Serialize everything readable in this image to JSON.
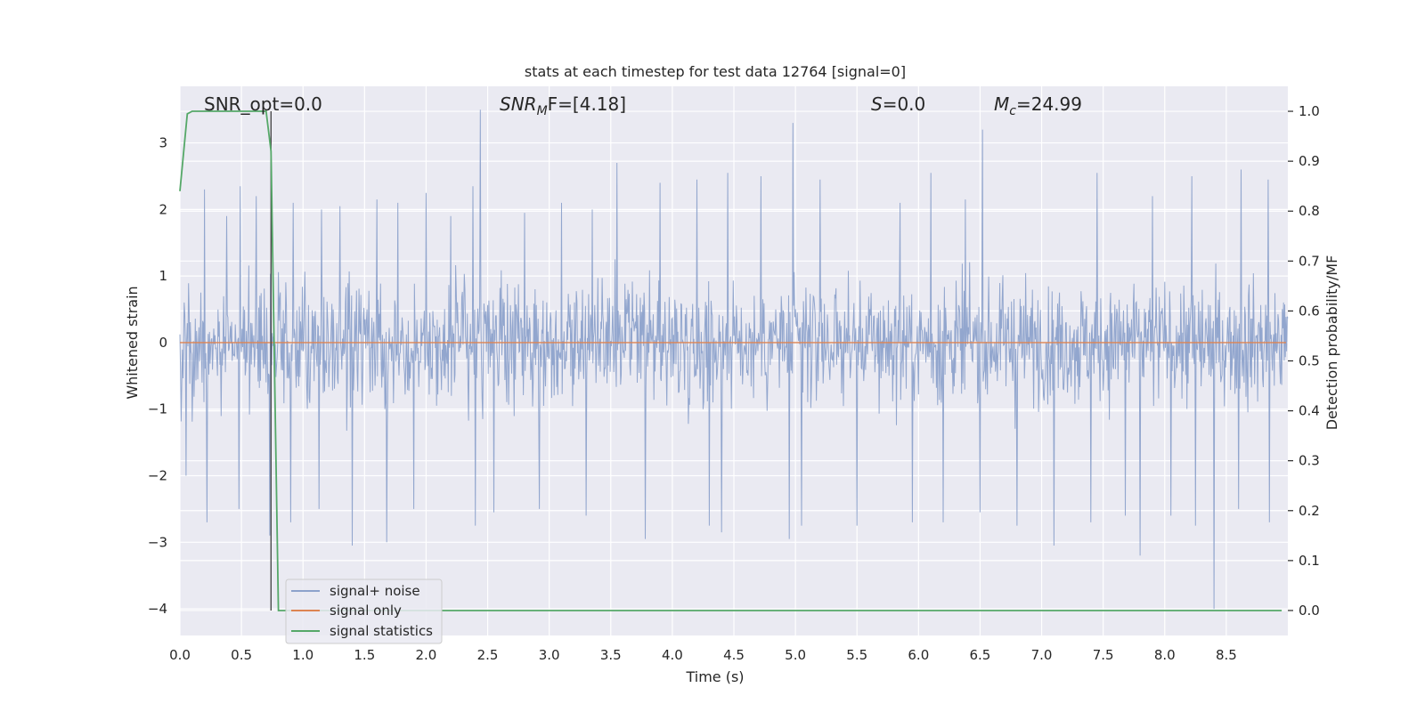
{
  "chart_data": {
    "type": "line",
    "title": "stats at each timestep for test data 12764 [signal=0]",
    "xlabel": "Time (s)",
    "ylabel": "Whitened strain",
    "y2label": "Detection probability/MF",
    "xlim": [
      0.0,
      9.0
    ],
    "ylim": [
      -4.4,
      3.85
    ],
    "y2lim": [
      -0.05,
      1.05
    ],
    "grid": true,
    "x_ticks": [
      0.0,
      0.5,
      1.0,
      1.5,
      2.0,
      2.5,
      3.0,
      3.5,
      4.0,
      4.5,
      5.0,
      5.5,
      6.0,
      6.5,
      7.0,
      7.5,
      8.0,
      8.5
    ],
    "x_tick_labels": [
      "0.0",
      "0.5",
      "1.0",
      "1.5",
      "2.0",
      "2.5",
      "3.0",
      "3.5",
      "4.0",
      "4.5",
      "5.0",
      "5.5",
      "6.0",
      "6.5",
      "7.0",
      "7.5",
      "8.0",
      "8.5"
    ],
    "y_ticks": [
      3,
      2,
      1,
      0,
      -1,
      -2,
      -3,
      -4
    ],
    "y_tick_labels": [
      "3",
      "2",
      "1",
      "0",
      "−1",
      "−2",
      "−3",
      "−4"
    ],
    "y2_ticks": [
      1.0,
      0.9,
      0.8,
      0.7,
      0.6,
      0.5,
      0.4,
      0.3,
      0.2,
      0.1,
      0.0
    ],
    "y2_tick_labels": [
      "1.0",
      "0.9",
      "0.8",
      "0.7",
      "0.6",
      "0.5",
      "0.4",
      "0.3",
      "0.2",
      "0.1",
      "0.0"
    ],
    "annotations": {
      "snr_opt": "SNR_opt=0.0",
      "snr_mf_base": "SNR",
      "snr_mf_sub": "M",
      "snr_mf_rest": "F=[4.18]",
      "s_sym": "S",
      "s_rest": "=0.0",
      "mc_base": "M",
      "mc_sub": "c",
      "mc_rest": "=24.99"
    },
    "legend": {
      "placement": "lower-left",
      "entries": [
        "signal+ noise",
        "signal only",
        "signal statistics"
      ]
    },
    "colors": {
      "noise": "#8da2cb",
      "signal": "#dd8452",
      "stats": "#55a868",
      "background": "#eaeaf2",
      "grid": "#ffffff",
      "marker_line": "#404040"
    },
    "series": [
      {
        "name": "signal+ noise",
        "axis": "left",
        "envelope_note": "dense whitened-noise trace between about -1.5 and 1.5",
        "spike_peaks": [
          [
            0.05,
            2.1
          ],
          [
            0.2,
            2.3
          ],
          [
            0.38,
            1.9
          ],
          [
            0.49,
            2.35
          ],
          [
            0.62,
            2.2
          ],
          [
            0.92,
            2.1
          ],
          [
            1.15,
            2.0
          ],
          [
            1.3,
            2.05
          ],
          [
            1.6,
            2.15
          ],
          [
            1.77,
            2.1
          ],
          [
            2.0,
            2.25
          ],
          [
            2.2,
            1.9
          ],
          [
            2.38,
            2.35
          ],
          [
            2.44,
            3.5
          ],
          [
            2.8,
            1.95
          ],
          [
            3.1,
            2.1
          ],
          [
            3.35,
            2.0
          ],
          [
            3.55,
            2.7
          ],
          [
            3.9,
            2.4
          ],
          [
            4.2,
            2.45
          ],
          [
            4.45,
            2.55
          ],
          [
            4.72,
            2.5
          ],
          [
            4.98,
            3.3
          ],
          [
            5.2,
            2.45
          ],
          [
            5.5,
            2.45
          ],
          [
            5.85,
            2.1
          ],
          [
            6.1,
            2.55
          ],
          [
            6.38,
            2.15
          ],
          [
            6.52,
            3.2
          ],
          [
            6.8,
            2.65
          ],
          [
            7.1,
            2.6
          ],
          [
            7.45,
            2.55
          ],
          [
            7.9,
            2.2
          ],
          [
            8.22,
            2.5
          ],
          [
            8.4,
            2.7
          ],
          [
            8.62,
            2.6
          ],
          [
            8.84,
            2.45
          ]
        ],
        "spike_troughs": [
          [
            0.05,
            -2.0
          ],
          [
            0.22,
            -2.7
          ],
          [
            0.48,
            -2.5
          ],
          [
            0.73,
            -2.9
          ],
          [
            0.9,
            -2.7
          ],
          [
            1.13,
            -2.5
          ],
          [
            1.4,
            -3.05
          ],
          [
            1.68,
            -3.0
          ],
          [
            1.9,
            -2.5
          ],
          [
            2.4,
            -2.75
          ],
          [
            2.55,
            -2.55
          ],
          [
            2.92,
            -2.5
          ],
          [
            3.3,
            -2.6
          ],
          [
            3.78,
            -2.95
          ],
          [
            4.3,
            -2.75
          ],
          [
            4.4,
            -2.85
          ],
          [
            4.95,
            -2.95
          ],
          [
            5.05,
            -2.75
          ],
          [
            5.5,
            -2.75
          ],
          [
            5.95,
            -2.7
          ],
          [
            6.2,
            -2.7
          ],
          [
            6.5,
            -2.55
          ],
          [
            6.8,
            -2.75
          ],
          [
            7.1,
            -3.05
          ],
          [
            7.4,
            -2.7
          ],
          [
            7.68,
            -2.6
          ],
          [
            7.8,
            -3.2
          ],
          [
            8.05,
            -2.6
          ],
          [
            8.25,
            -2.75
          ],
          [
            8.4,
            -4.0
          ],
          [
            8.6,
            -2.5
          ],
          [
            8.85,
            -2.7
          ]
        ]
      },
      {
        "name": "signal only",
        "axis": "left",
        "x": [
          0.0,
          9.0
        ],
        "y": [
          0.0,
          0.0
        ]
      },
      {
        "name": "signal statistics",
        "axis": "right",
        "x": [
          0.0,
          0.06,
          0.1,
          0.2,
          0.3,
          0.5,
          0.7,
          0.74,
          0.8,
          2.0,
          5.0,
          8.95
        ],
        "y": [
          0.84,
          0.995,
          1.0,
          1.0,
          1.0,
          1.0,
          1.0,
          0.92,
          0.0,
          0.0,
          0.0,
          0.0
        ]
      }
    ],
    "vertical_marker_x": 0.74
  }
}
